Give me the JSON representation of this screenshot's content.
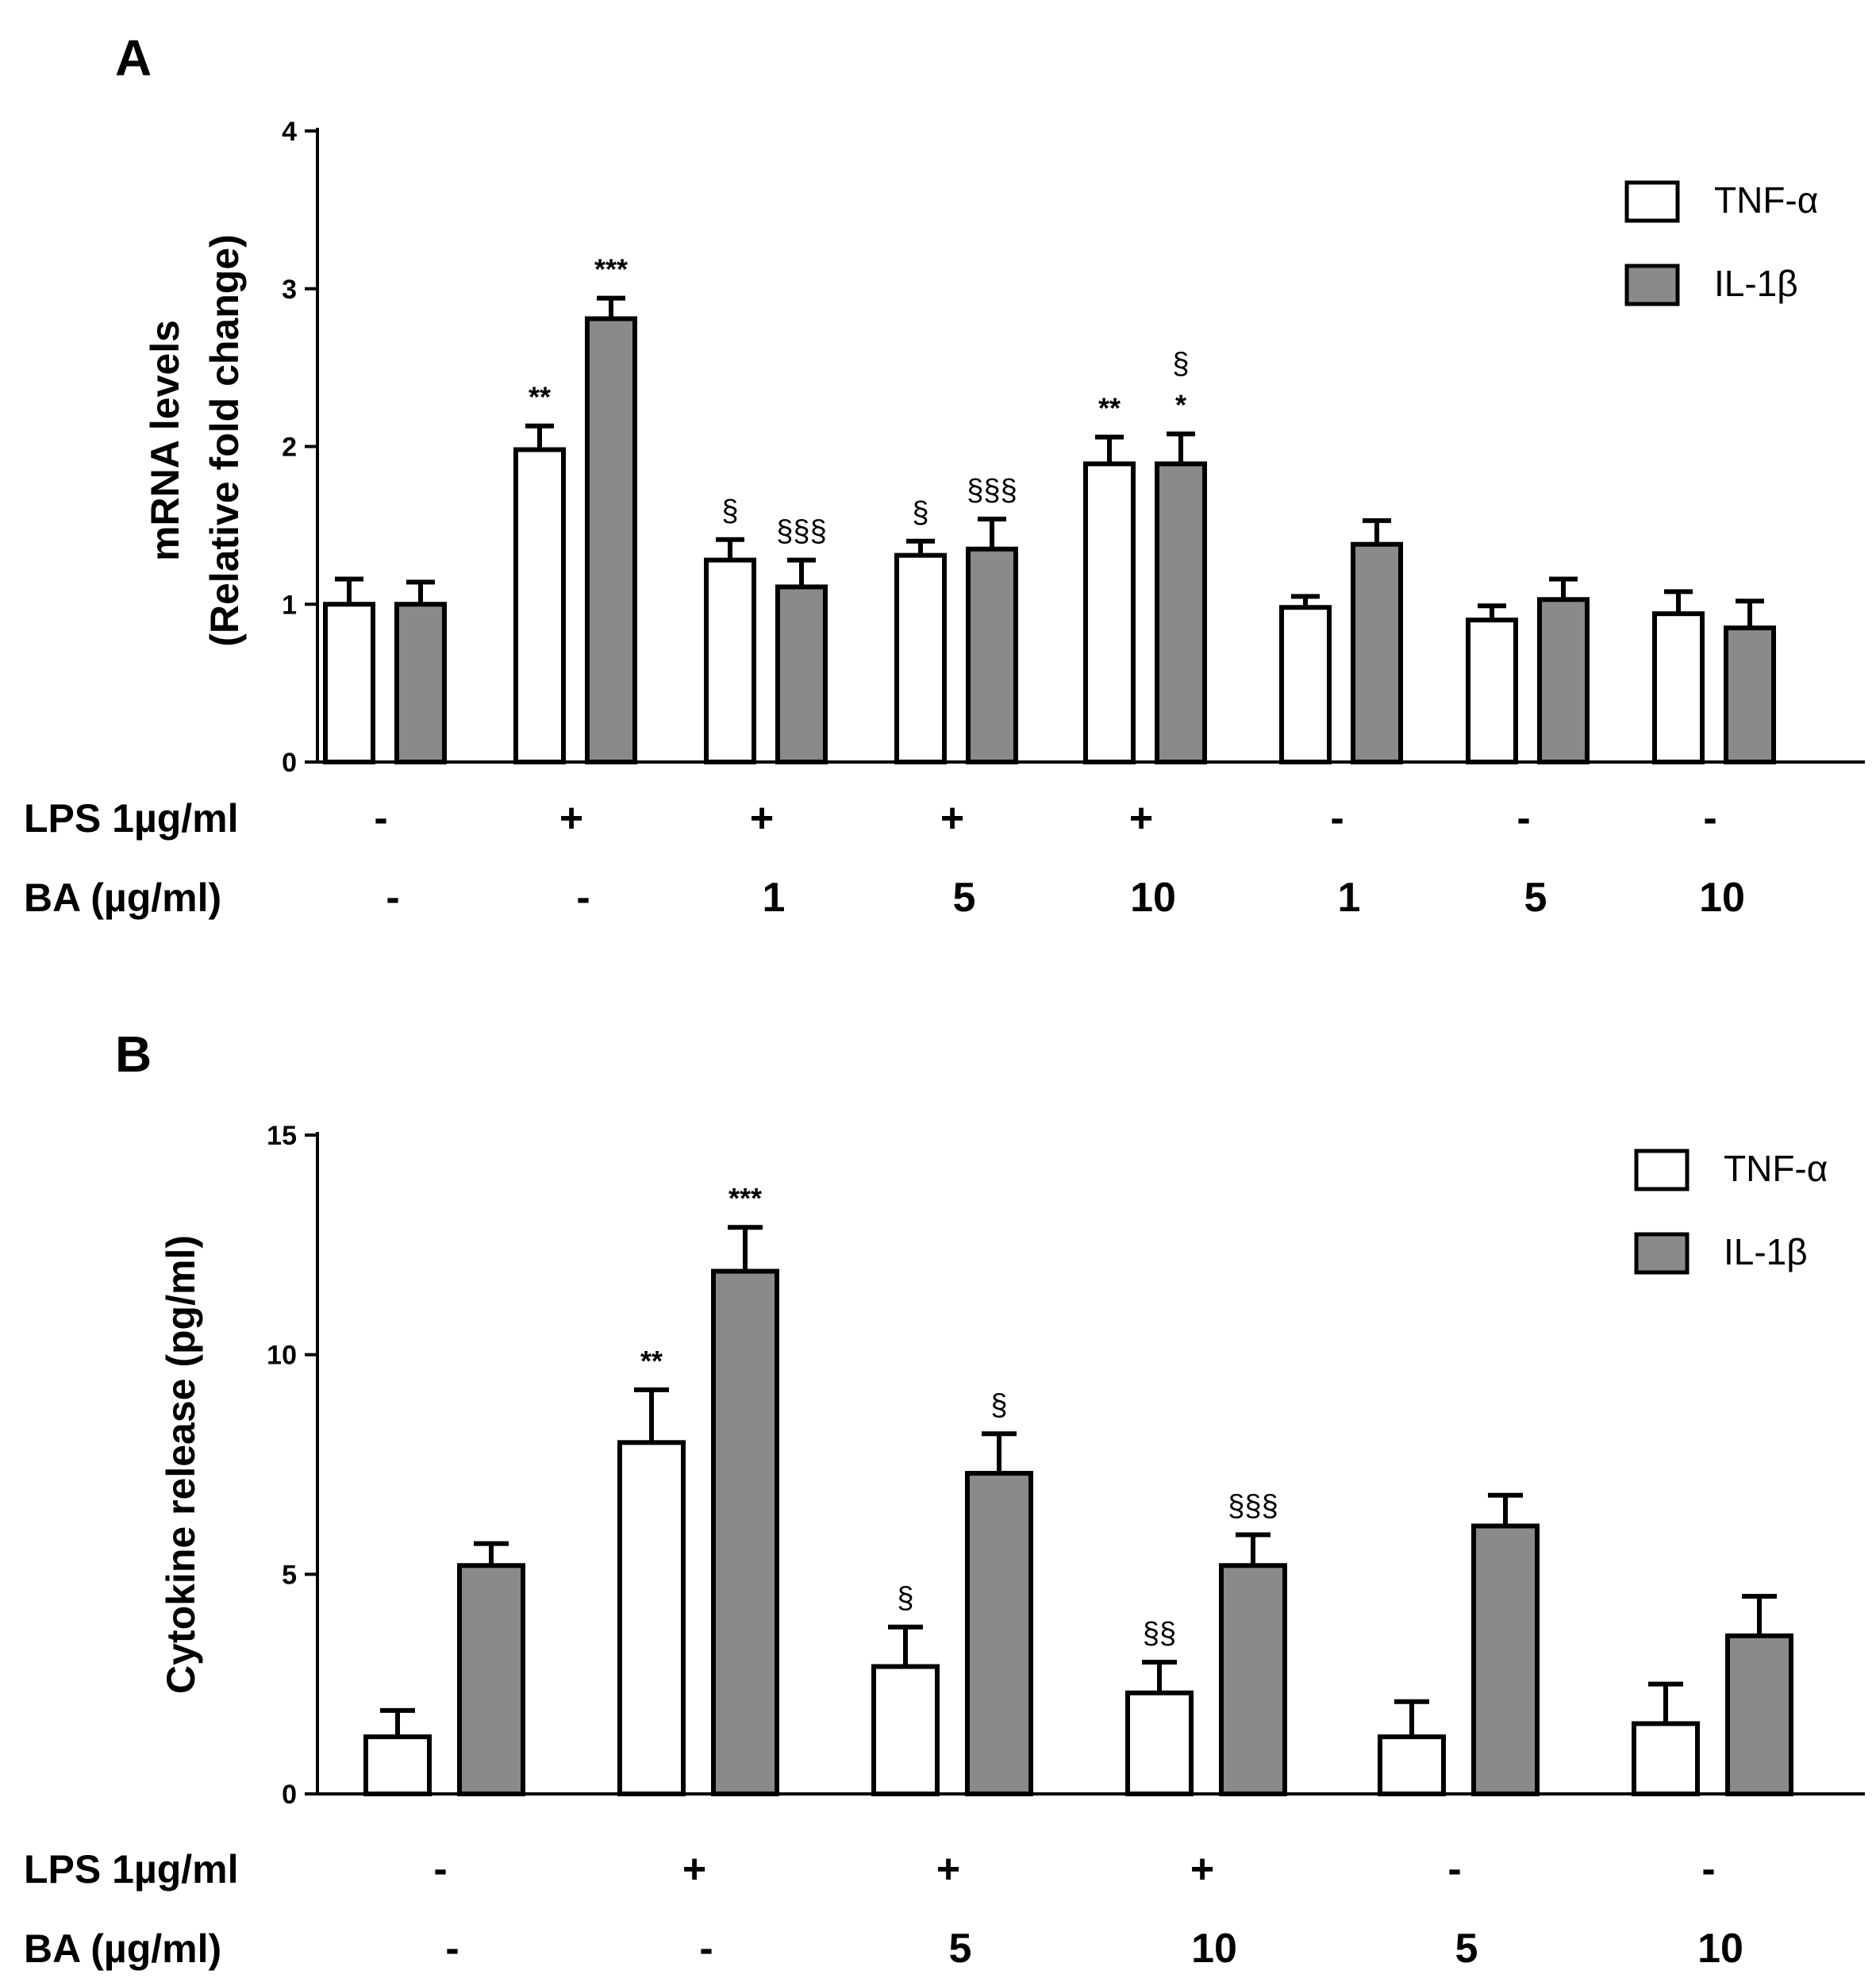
{
  "colors": {
    "tnf_fill": "#ffffff",
    "il1b_fill": "#8a8a8a",
    "stroke": "#000000"
  },
  "chart_data": [
    {
      "type": "bar",
      "panel": "A",
      "ylabel": [
        "mRNA levels",
        "(Relative fold change)"
      ],
      "ylim": [
        0,
        4
      ],
      "yticks": [
        0,
        1,
        2,
        3,
        4
      ],
      "legend": {
        "position": "top-right",
        "entries": [
          "TNF-α",
          "IL-1β"
        ]
      },
      "row_labels": [
        "LPS 1µg/ml",
        "BA (µg/ml)"
      ],
      "groups": [
        {
          "lps": "-",
          "ba": "-"
        },
        {
          "lps": "+",
          "ba": "-"
        },
        {
          "lps": "+",
          "ba": "1"
        },
        {
          "lps": "+",
          "ba": "5"
        },
        {
          "lps": "+",
          "ba": "10"
        },
        {
          "lps": "-",
          "ba": "1"
        },
        {
          "lps": "-",
          "ba": "5"
        },
        {
          "lps": "-",
          "ba": "10"
        }
      ],
      "series": [
        {
          "name": "TNF-α",
          "values": [
            1.0,
            1.98,
            1.28,
            1.31,
            1.89,
            0.98,
            0.9,
            0.94
          ],
          "errors": [
            0.16,
            0.15,
            0.13,
            0.09,
            0.17,
            0.07,
            0.09,
            0.14
          ],
          "annotations": [
            [],
            [
              "**"
            ],
            [
              "§"
            ],
            [
              "§"
            ],
            [
              "**"
            ],
            [],
            [],
            []
          ]
        },
        {
          "name": "IL-1β",
          "values": [
            1.0,
            2.81,
            1.11,
            1.35,
            1.89,
            1.38,
            1.03,
            0.85
          ],
          "errors": [
            0.14,
            0.13,
            0.17,
            0.19,
            0.19,
            0.15,
            0.13,
            0.17
          ],
          "annotations": [
            [],
            [
              "***"
            ],
            [
              "§§§"
            ],
            [
              "§§§"
            ],
            [
              "*",
              "§"
            ],
            [],
            [],
            []
          ]
        }
      ]
    },
    {
      "type": "bar",
      "panel": "B",
      "ylabel": [
        "Cytokine release  (pg/ml)"
      ],
      "ylim": [
        0,
        15
      ],
      "yticks": [
        0,
        5,
        10,
        15
      ],
      "legend": {
        "position": "top-right",
        "entries": [
          "TNF-α",
          "IL-1β"
        ]
      },
      "row_labels": [
        "LPS 1µg/ml",
        "BA (µg/ml)"
      ],
      "groups": [
        {
          "lps": "-",
          "ba": "-"
        },
        {
          "lps": "+",
          "ba": "-"
        },
        {
          "lps": "+",
          "ba": "5"
        },
        {
          "lps": "+",
          "ba": "10"
        },
        {
          "lps": "-",
          "ba": "5"
        },
        {
          "lps": "-",
          "ba": "10"
        }
      ],
      "series": [
        {
          "name": "TNF-α",
          "values": [
            1.3,
            8.0,
            2.9,
            2.3,
            1.3,
            1.6
          ],
          "errors": [
            0.6,
            1.2,
            0.9,
            0.7,
            0.8,
            0.9
          ],
          "annotations": [
            [],
            [
              "**"
            ],
            [
              "§"
            ],
            [
              "§§"
            ],
            [],
            []
          ]
        },
        {
          "name": "IL-1β",
          "values": [
            5.2,
            11.9,
            7.3,
            5.2,
            6.1,
            3.6
          ],
          "errors": [
            0.5,
            1.0,
            0.9,
            0.7,
            0.7,
            0.9
          ],
          "annotations": [
            [],
            [
              "***"
            ],
            [
              "§"
            ],
            [
              "§§§"
            ],
            [],
            []
          ]
        }
      ]
    }
  ]
}
